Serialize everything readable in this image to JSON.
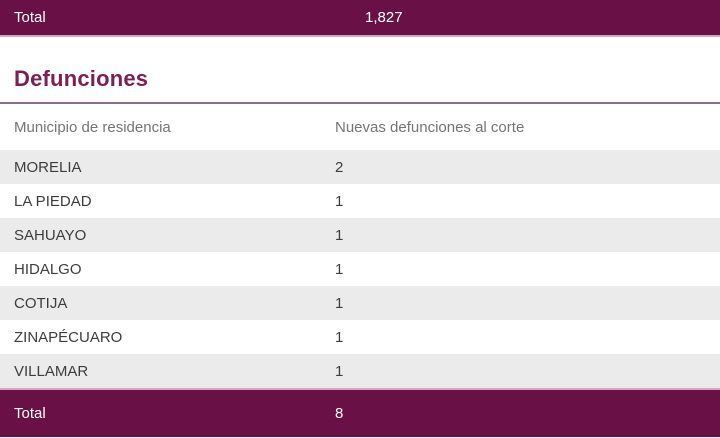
{
  "colors": {
    "primary_plum": "#691146",
    "pink_separator": "#d4a6c3",
    "heading_purple": "#7b2155",
    "rule_mauve": "#8d7183",
    "header_text_gray": "#757575",
    "row_text": "#3d3d3d",
    "zebra_row_bg": "#ebebeb",
    "total_row_text": "#ffffff"
  },
  "top_total_bar": {
    "label": "Total",
    "value": "1,827"
  },
  "section": {
    "title": "Defunciones",
    "table": {
      "columns": [
        "Municipio de residencia",
        "Nuevas defunciones al corte"
      ],
      "rows": [
        {
          "municipio": "MORELIA",
          "valor": "2"
        },
        {
          "municipio": "LA PIEDAD",
          "valor": "1"
        },
        {
          "municipio": "SAHUAYO",
          "valor": "1"
        },
        {
          "municipio": "HIDALGO",
          "valor": "1"
        },
        {
          "municipio": "COTIJA",
          "valor": "1"
        },
        {
          "municipio": "ZINAPÉCUARO",
          "valor": "1"
        },
        {
          "municipio": "VILLAMAR",
          "valor": "1"
        }
      ],
      "total": {
        "label": "Total",
        "value": "8"
      }
    }
  }
}
